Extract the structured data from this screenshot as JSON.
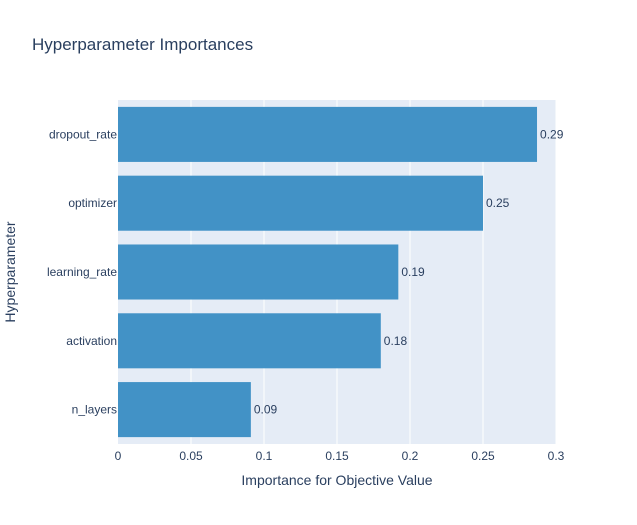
{
  "chart_data": {
    "type": "bar",
    "orientation": "horizontal",
    "title": "Hyperparameter Importances",
    "xlabel": "Importance for Objective Value",
    "ylabel": "Hyperparameter",
    "categories": [
      "dropout_rate",
      "optimizer",
      "learning_rate",
      "activation",
      "n_layers"
    ],
    "values": [
      0.287,
      0.25,
      0.192,
      0.18,
      0.091
    ],
    "data_labels": [
      "0.29",
      "0.25",
      "0.19",
      "0.18",
      "0.09"
    ],
    "xlim": [
      0,
      0.3
    ],
    "xticks": [
      0,
      0.05,
      0.1,
      0.15,
      0.2,
      0.25,
      0.3
    ],
    "xtick_labels": [
      "0",
      "0.05",
      "0.1",
      "0.15",
      "0.2",
      "0.25",
      "0.3"
    ],
    "grid": true,
    "legend": "none",
    "colors": {
      "bar": "#4292c6",
      "plot_background": "#e5ecf6",
      "gridline": "#ffffff",
      "text": "#2a3f5f"
    }
  }
}
